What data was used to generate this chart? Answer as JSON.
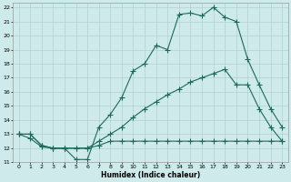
{
  "xlabel": "Humidex (Indice chaleur)",
  "xlim": [
    -0.5,
    23.5
  ],
  "ylim": [
    11,
    22.3
  ],
  "xticks": [
    0,
    1,
    2,
    3,
    4,
    5,
    6,
    7,
    8,
    9,
    10,
    11,
    12,
    13,
    14,
    15,
    16,
    17,
    18,
    19,
    20,
    21,
    22,
    23
  ],
  "yticks": [
    11,
    12,
    13,
    14,
    15,
    16,
    17,
    18,
    19,
    20,
    21,
    22
  ],
  "bg_color": "#ceeaea",
  "grid_color": "#aacccc",
  "line_color": "#1a6b5a",
  "line1_x": [
    0,
    1,
    2,
    3,
    4,
    5,
    6,
    7,
    8,
    9,
    10,
    11,
    12,
    13,
    14,
    15,
    16,
    17,
    18,
    19,
    20,
    21,
    22,
    23
  ],
  "line1_y": [
    13.0,
    12.7,
    12.1,
    12.0,
    12.0,
    11.2,
    11.2,
    13.5,
    14.4,
    15.6,
    17.5,
    18.0,
    19.3,
    19.0,
    21.5,
    21.6,
    21.4,
    22.0,
    21.3,
    21.0,
    18.3,
    16.5,
    14.8,
    13.5
  ],
  "line2_x": [
    0,
    1,
    2,
    3,
    4,
    5,
    6,
    7,
    8,
    9,
    10,
    11,
    12,
    13,
    14,
    15,
    16,
    17,
    18,
    19,
    20,
    21,
    22,
    23
  ],
  "line2_y": [
    13.0,
    13.0,
    12.2,
    12.0,
    12.0,
    12.0,
    12.0,
    12.2,
    12.5,
    12.5,
    12.5,
    12.5,
    12.5,
    12.5,
    12.5,
    12.5,
    12.5,
    12.5,
    12.5,
    12.5,
    12.5,
    12.5,
    12.5,
    12.5
  ],
  "line3_x": [
    0,
    1,
    2,
    3,
    4,
    5,
    6,
    7,
    8,
    9,
    10,
    11,
    12,
    13,
    14,
    15,
    16,
    17,
    18,
    19,
    20,
    21,
    22,
    23
  ],
  "line3_y": [
    13.0,
    13.0,
    12.2,
    12.0,
    12.0,
    12.0,
    12.0,
    12.5,
    13.0,
    13.5,
    14.2,
    14.8,
    15.3,
    15.8,
    16.2,
    16.7,
    17.0,
    17.3,
    17.6,
    16.5,
    16.5,
    14.8,
    13.5,
    12.5
  ]
}
